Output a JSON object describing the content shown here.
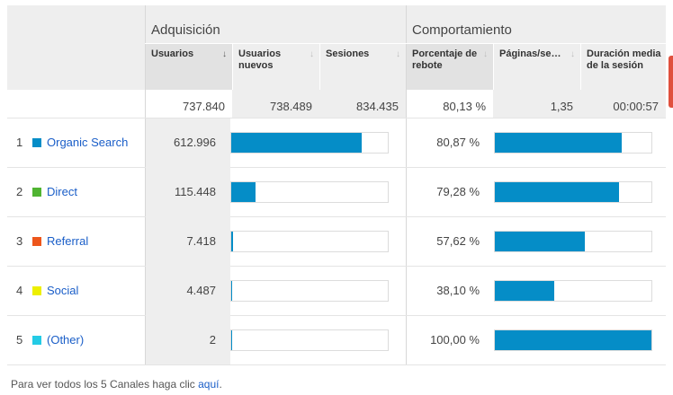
{
  "groups": {
    "acquisition": "Adquisición",
    "behavior": "Comportamiento"
  },
  "columns": [
    {
      "label": "Usuarios",
      "sorted": true
    },
    {
      "label": "Usuarios nuevos",
      "sorted": false
    },
    {
      "label": "Sesiones",
      "sorted": false
    },
    {
      "label": "Porcentaje de rebote",
      "sorted": false
    },
    {
      "label": "Páginas/se…",
      "sorted": false
    },
    {
      "label": "Duración media de la sesión",
      "sorted": false
    }
  ],
  "totals": [
    "737.840",
    "738.489",
    "834.435",
    "80,13 %",
    "1,35",
    "00:00:57"
  ],
  "rows": [
    {
      "index": "1",
      "channel": "Organic Search",
      "color": "#058dc7",
      "users": "612.996",
      "users_share": 0.831,
      "bounce": "80,87 %",
      "bounce_share": 0.8087
    },
    {
      "index": "2",
      "channel": "Direct",
      "color": "#50b432",
      "users": "115.448",
      "users_share": 0.156,
      "bounce": "79,28 %",
      "bounce_share": 0.7928
    },
    {
      "index": "3",
      "channel": "Referral",
      "color": "#ed561b",
      "users": "7.418",
      "users_share": 0.01,
      "bounce": "57,62 %",
      "bounce_share": 0.5762
    },
    {
      "index": "4",
      "channel": "Social",
      "color": "#edef00",
      "users": "4.487",
      "users_share": 0.006,
      "bounce": "38,10 %",
      "bounce_share": 0.381
    },
    {
      "index": "5",
      "channel": "(Other)",
      "color": "#24cbe5",
      "users": "2",
      "users_share": 0.0,
      "bounce": "100,00 %",
      "bounce_share": 1.0
    }
  ],
  "footer": {
    "text": "Para ver todos los 5 Canales haga clic ",
    "link": "aquí",
    "end": "."
  }
}
